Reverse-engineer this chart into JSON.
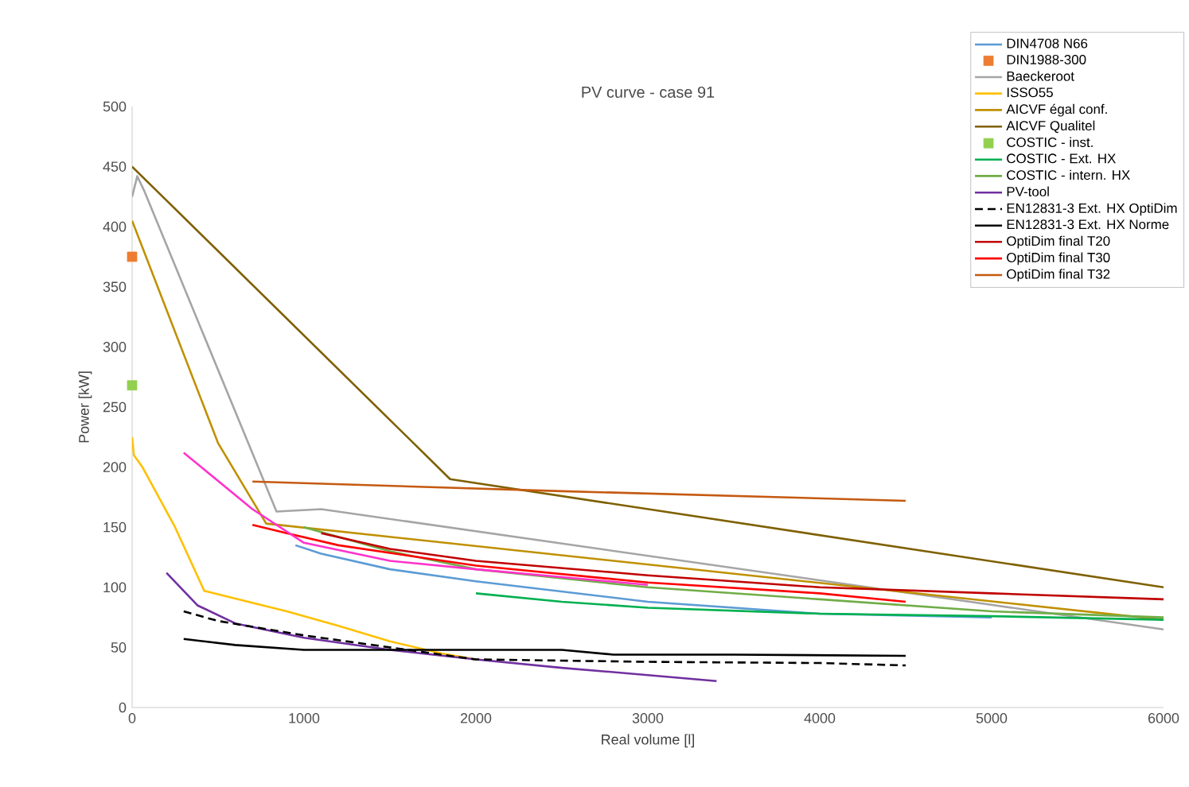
{
  "chart_data": {
    "type": "line",
    "title": "PV curve  - case 91",
    "xlabel": "Real volume [l]",
    "ylabel": "Power [kW]",
    "xlim": [
      0,
      6000
    ],
    "xticks": [
      0,
      1000,
      2000,
      3000,
      4000,
      5000,
      6000
    ],
    "ylim": [
      0,
      500
    ],
    "yticks": [
      0,
      50,
      100,
      150,
      200,
      250,
      300,
      350,
      400,
      450,
      500
    ],
    "grid": false,
    "legend": "top right",
    "marker": "none",
    "line_style": "solid",
    "series": [
      {
        "name": "DIN4708 N66",
        "color": "#5b9bd5",
        "x": [
          950,
          1100,
          1500,
          2000,
          3000,
          4000,
          5000
        ],
        "values": [
          135,
          128,
          115,
          105,
          88,
          78,
          75
        ]
      },
      {
        "name": "DIN1988-300",
        "type": "scatter",
        "marker": "square",
        "color": "#ed7d31",
        "x": [
          0
        ],
        "values": [
          375
        ]
      },
      {
        "name": "Baeckeroot",
        "color": "#a5a5a5",
        "x": [
          0,
          30,
          70,
          840,
          1100,
          6000
        ],
        "values": [
          425,
          442,
          430,
          163,
          165,
          65
        ]
      },
      {
        "name": "ISSO55",
        "color": "#ffc000",
        "x": [
          0,
          10,
          60,
          250,
          420,
          900,
          1200,
          1500,
          1800,
          2000
        ],
        "values": [
          225,
          210,
          200,
          150,
          97,
          80,
          68,
          55,
          45,
          40
        ]
      },
      {
        "name": "AICVF égal conf.",
        "color": "#bf9000",
        "x": [
          0,
          500,
          780,
          6000
        ],
        "values": [
          405,
          220,
          153,
          73
        ]
      },
      {
        "name": "AICVF Qualitel",
        "color": "#7f6000",
        "x": [
          0,
          1850,
          6000
        ],
        "values": [
          450,
          190,
          100
        ]
      },
      {
        "name": "COSTIC - inst.",
        "type": "scatter",
        "marker": "square",
        "color": "#92d050",
        "x": [
          0
        ],
        "values": [
          268
        ]
      },
      {
        "name": "COSTIC - Ext. HX",
        "color": "#00b050",
        "x": [
          2000,
          2500,
          3000,
          4000,
          5000,
          6000
        ],
        "values": [
          95,
          88,
          83,
          78,
          76,
          73
        ]
      },
      {
        "name": "COSTIC - intern. HX",
        "color": "#70ad47",
        "x": [
          1000,
          1500,
          2000,
          3000,
          4000,
          5000,
          6000
        ],
        "values": [
          150,
          130,
          115,
          100,
          90,
          80,
          75
        ]
      },
      {
        "name": "PV-tool",
        "color": "#7030a0",
        "x": [
          200,
          380,
          600,
          1000,
          1500,
          2000,
          2500,
          3000,
          3400
        ],
        "values": [
          112,
          85,
          70,
          58,
          48,
          40,
          33,
          27,
          22
        ]
      },
      {
        "name": "EN12831-3 Ext. HX OptiDim",
        "color": "#000000",
        "line_style": "dashed",
        "x": [
          300,
          500,
          1000,
          1500,
          2000,
          3000,
          4000,
          4500
        ],
        "values": [
          80,
          72,
          60,
          50,
          40,
          38,
          37,
          35
        ]
      },
      {
        "name": "EN12831-3 Ext. HX Norme",
        "color": "#000000",
        "x": [
          300,
          600,
          1000,
          1500,
          2000,
          2500,
          2800,
          3500,
          4500
        ],
        "values": [
          57,
          52,
          48,
          48,
          48,
          48,
          44,
          44,
          43
        ]
      },
      {
        "name": "OptiDim final T20",
        "color": "#c00000",
        "x": [
          1100,
          1500,
          2000,
          3000,
          4000,
          5000,
          6000
        ],
        "values": [
          145,
          132,
          122,
          110,
          100,
          95,
          90
        ]
      },
      {
        "name": "OptiDim final T30",
        "color": "#ff0000",
        "x": [
          700,
          900,
          1200,
          2000,
          3000,
          4000,
          4500
        ],
        "values": [
          152,
          145,
          135,
          118,
          104,
          95,
          88
        ]
      },
      {
        "name": "OptiDim final T32",
        "color": "#c55a11",
        "x": [
          700,
          2500,
          4500
        ],
        "values": [
          188,
          180,
          172
        ]
      },
      {
        "color": "#ff33cc",
        "x": [
          300,
          700,
          1000,
          1500,
          2000,
          3000
        ],
        "values": [
          212,
          165,
          137,
          122,
          115,
          102
        ]
      }
    ]
  }
}
